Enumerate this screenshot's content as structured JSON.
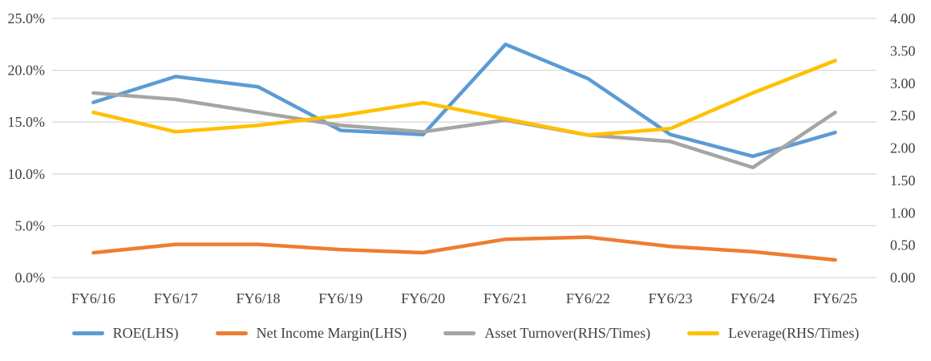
{
  "chart_data": {
    "type": "line",
    "title": "",
    "categories": [
      "FY6/16",
      "FY6/17",
      "FY6/18",
      "FY6/19",
      "FY6/20",
      "FY6/21",
      "FY6/22",
      "FY6/23",
      "FY6/24",
      "FY6/25"
    ],
    "series": [
      {
        "name": "ROE(LHS)",
        "axis": "left",
        "color": "#5B9BD5",
        "values": [
          16.9,
          19.4,
          18.4,
          14.2,
          13.8,
          22.5,
          19.2,
          13.8,
          11.7,
          14.0
        ]
      },
      {
        "name": "Net Income Margin(LHS)",
        "axis": "left",
        "color": "#ED7D31",
        "values": [
          2.4,
          3.2,
          3.2,
          2.7,
          2.4,
          3.7,
          3.9,
          3.0,
          2.5,
          1.7
        ]
      },
      {
        "name": "Asset Turnover(RHS/Times)",
        "axis": "right",
        "color": "#A5A5A5",
        "values": [
          2.85,
          2.75,
          2.55,
          2.35,
          2.25,
          2.43,
          2.2,
          2.1,
          1.7,
          2.55
        ]
      },
      {
        "name": "Leverage(RHS/Times)",
        "axis": "right",
        "color": "#FFC000",
        "values": [
          2.55,
          2.25,
          2.35,
          2.5,
          2.7,
          2.45,
          2.2,
          2.3,
          2.85,
          3.35
        ]
      }
    ],
    "left_axis": {
      "min": 0,
      "max": 25,
      "step": 5,
      "tick_labels": [
        "0.0%",
        "5.0%",
        "10.0%",
        "15.0%",
        "20.0%",
        "25.0%"
      ]
    },
    "right_axis": {
      "min": 0,
      "max": 4,
      "step": 0.5,
      "tick_labels": [
        "0.00",
        "0.50",
        "1.00",
        "1.50",
        "2.00",
        "2.50",
        "3.00",
        "3.50",
        "4.00"
      ]
    },
    "grid": true,
    "legend_position": "bottom"
  },
  "styles": {
    "background": "#FFFFFF",
    "gridline_color": "#D9D9D9",
    "text_color": "#404040",
    "line_width": 4.5
  }
}
